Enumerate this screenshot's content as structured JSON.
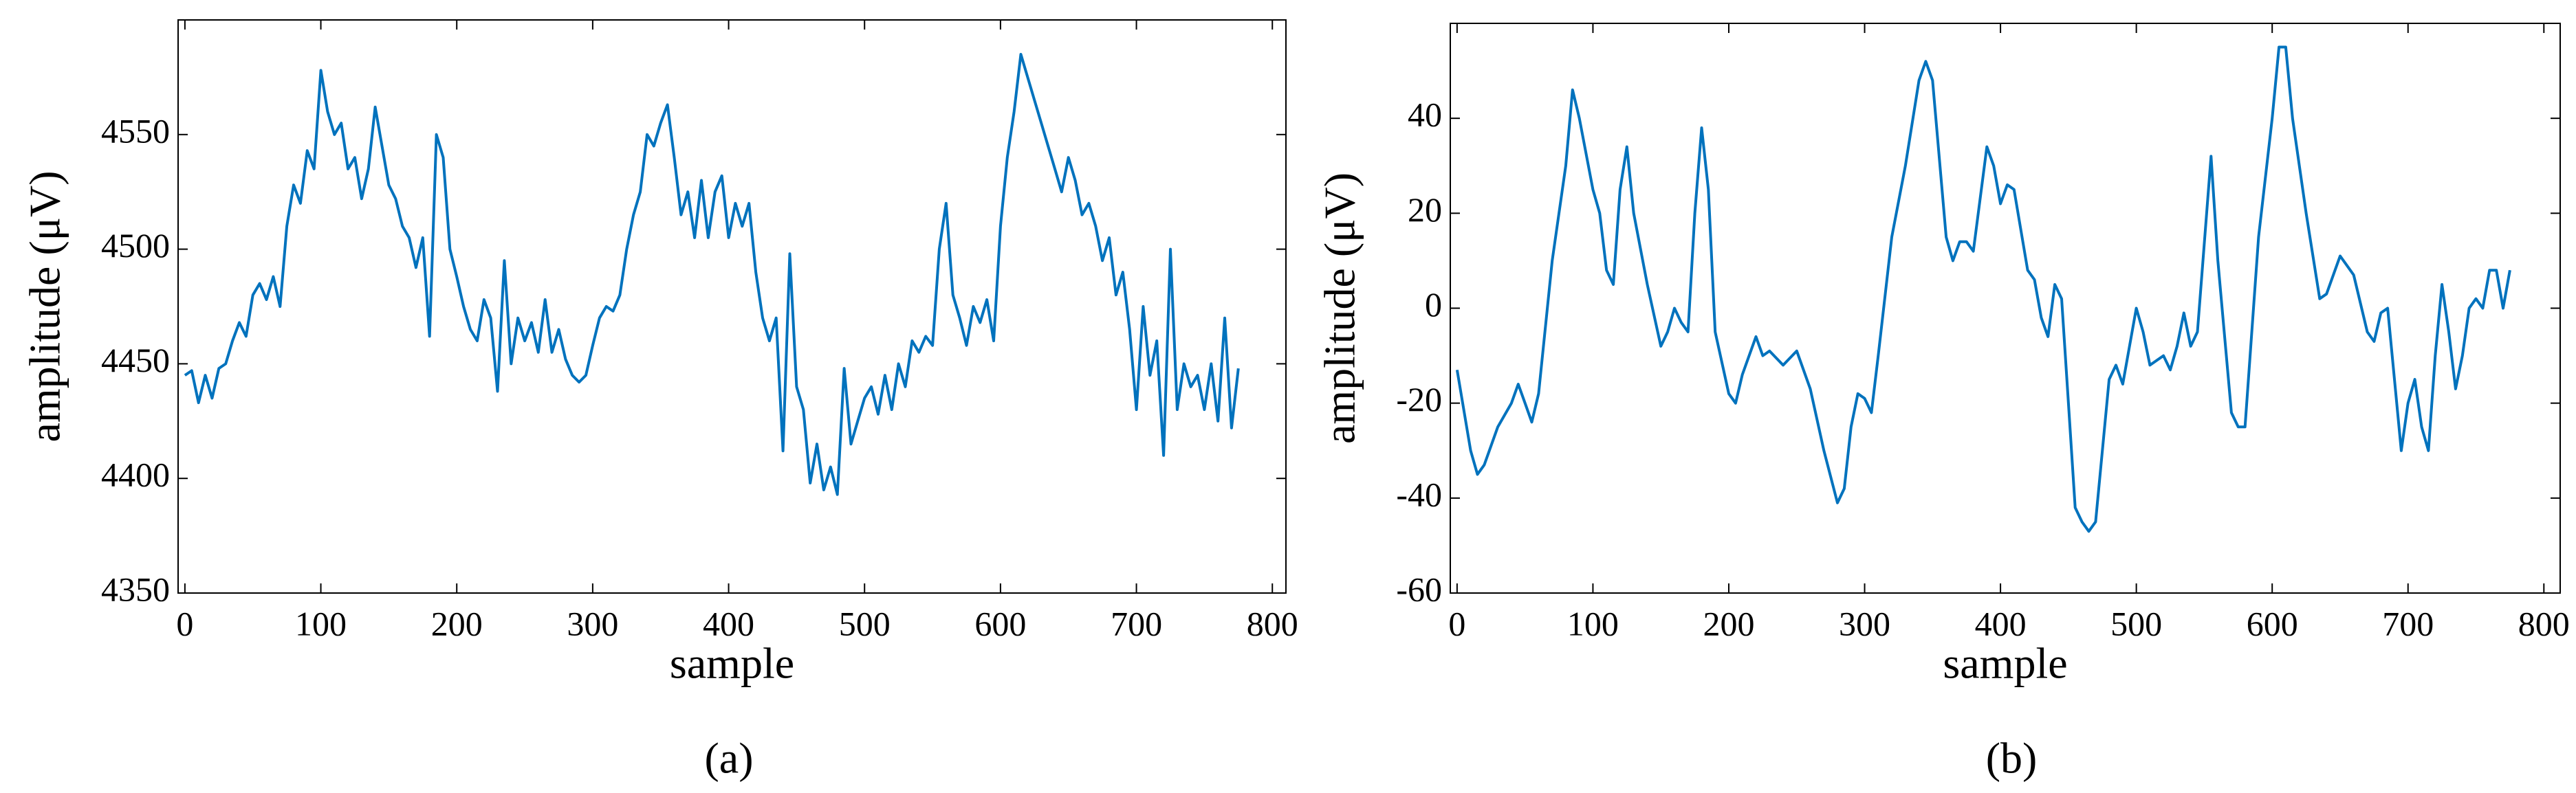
{
  "chart_data": [
    {
      "type": "line",
      "caption": "(a)",
      "xlabel": "sample",
      "ylabel": "amplitude (μV)",
      "xlim": [
        -5,
        810
      ],
      "ylim": [
        4350,
        4600
      ],
      "xticks": [
        0,
        100,
        200,
        300,
        400,
        500,
        600,
        700,
        800
      ],
      "yticks": [
        4350,
        4400,
        4450,
        4500,
        4550
      ],
      "x": [
        0,
        5,
        10,
        15,
        20,
        25,
        30,
        35,
        40,
        45,
        50,
        55,
        60,
        65,
        70,
        75,
        80,
        85,
        90,
        95,
        100,
        105,
        110,
        115,
        120,
        125,
        130,
        135,
        140,
        145,
        150,
        155,
        160,
        165,
        170,
        175,
        180,
        185,
        190,
        195,
        200,
        205,
        210,
        215,
        220,
        225,
        230,
        235,
        240,
        245,
        250,
        255,
        260,
        265,
        270,
        275,
        280,
        285,
        290,
        295,
        300,
        305,
        310,
        315,
        320,
        325,
        330,
        335,
        340,
        345,
        350,
        355,
        360,
        365,
        370,
        375,
        380,
        385,
        390,
        395,
        400,
        405,
        410,
        415,
        420,
        425,
        430,
        435,
        440,
        445,
        450,
        455,
        460,
        465,
        470,
        475,
        480,
        485,
        490,
        495,
        500,
        505,
        510,
        515,
        520,
        525,
        530,
        535,
        540,
        545,
        550,
        555,
        560,
        565,
        570,
        575,
        580,
        585,
        590,
        595,
        600,
        605,
        610,
        615,
        620,
        625,
        630,
        635,
        640,
        645,
        650,
        655,
        660,
        665,
        670,
        675,
        680,
        685,
        690,
        695,
        700,
        705,
        710,
        715,
        720,
        725,
        730,
        735,
        740,
        745,
        750,
        755,
        760,
        765,
        770,
        775
      ],
      "series": [
        {
          "color": "#0072bd",
          "values": [
            4445,
            4447,
            4433,
            4445,
            4435,
            4448,
            4450,
            4460,
            4468,
            4462,
            4480,
            4485,
            4478,
            4488,
            4475,
            4510,
            4528,
            4520,
            4543,
            4535,
            4578,
            4560,
            4550,
            4555,
            4535,
            4540,
            4522,
            4535,
            4562,
            4545,
            4528,
            4522,
            4510,
            4505,
            4492,
            4505,
            4462,
            4550,
            4540,
            4500,
            4488,
            4475,
            4465,
            4460,
            4478,
            4470,
            4438,
            4495,
            4450,
            4470,
            4460,
            4468,
            4455,
            4478,
            4455,
            4465,
            4452,
            4445,
            4442,
            4445,
            4458,
            4470,
            4475,
            4473,
            4480,
            4500,
            4515,
            4525,
            4550,
            4545,
            4555,
            4563,
            4540,
            4515,
            4525,
            4505,
            4530,
            4505,
            4525,
            4532,
            4505,
            4520,
            4510,
            4520,
            4490,
            4470,
            4460,
            4470,
            4412,
            4498,
            4440,
            4430,
            4398,
            4415,
            4395,
            4405,
            4393,
            4448,
            4415,
            4425,
            4435,
            4440,
            4428,
            4445,
            4430,
            4450,
            4440,
            4460,
            4455,
            4462,
            4458,
            4500,
            4520,
            4480,
            4470,
            4458,
            4475,
            4468,
            4478,
            4460,
            4510,
            4540,
            4560,
            4585,
            4575,
            4565,
            4555,
            4545,
            4535,
            4525,
            4540,
            4530,
            4515,
            4520,
            4510,
            4495,
            4505,
            4480,
            4490,
            4465,
            4430,
            4475,
            4445,
            4460,
            4410,
            4500,
            4430,
            4450,
            4440,
            4445,
            4430,
            4450,
            4425,
            4470,
            4422,
            4448
          ]
        }
      ]
    },
    {
      "type": "line",
      "caption": "(b)",
      "xlabel": "sample",
      "ylabel": "amplitude (μV)",
      "xlim": [
        -5,
        812
      ],
      "ylim": [
        -60,
        60
      ],
      "xticks": [
        0,
        100,
        200,
        300,
        400,
        500,
        600,
        700,
        800
      ],
      "yticks": [
        -60,
        -40,
        -20,
        0,
        20,
        40
      ],
      "x": [
        0,
        10,
        15,
        20,
        30,
        40,
        45,
        50,
        55,
        60,
        70,
        80,
        85,
        90,
        100,
        105,
        110,
        115,
        120,
        125,
        130,
        140,
        150,
        155,
        160,
        165,
        170,
        175,
        180,
        185,
        190,
        200,
        205,
        210,
        220,
        225,
        230,
        240,
        250,
        260,
        270,
        280,
        285,
        290,
        295,
        300,
        305,
        310,
        320,
        330,
        340,
        345,
        350,
        360,
        365,
        370,
        375,
        380,
        390,
        395,
        400,
        405,
        410,
        420,
        425,
        430,
        435,
        440,
        445,
        450,
        455,
        460,
        465,
        470,
        480,
        485,
        490,
        500,
        505,
        510,
        520,
        525,
        530,
        535,
        540,
        545,
        555,
        560,
        570,
        575,
        580,
        590,
        600,
        605,
        610,
        615,
        625,
        635,
        640,
        650,
        660,
        670,
        675,
        680,
        685,
        690,
        695,
        700,
        705,
        710,
        715,
        720,
        725,
        730,
        735,
        740,
        745,
        750,
        755,
        760,
        765,
        770,
        775
      ],
      "series": [
        {
          "color": "#0072bd",
          "values": [
            -13,
            -30,
            -35,
            -33,
            -25,
            -20,
            -16,
            -20,
            -24,
            -18,
            10,
            30,
            46,
            40,
            25,
            20,
            8,
            5,
            25,
            34,
            20,
            5,
            -8,
            -5,
            0,
            -3,
            -5,
            20,
            38,
            25,
            -5,
            -18,
            -20,
            -14,
            -6,
            -10,
            -9,
            -12,
            -9,
            -17,
            -30,
            -41,
            -38,
            -25,
            -18,
            -19,
            -22,
            -10,
            15,
            30,
            48,
            52,
            48,
            15,
            10,
            14,
            14,
            12,
            34,
            30,
            22,
            26,
            25,
            8,
            6,
            -2,
            -6,
            5,
            2,
            -20,
            -42,
            -45,
            -47,
            -45,
            -15,
            -12,
            -16,
            0,
            -5,
            -12,
            -10,
            -13,
            -8,
            -1,
            -8,
            -5,
            32,
            10,
            -22,
            -25,
            -25,
            15,
            40,
            55,
            55,
            40,
            20,
            2,
            3,
            11,
            7,
            -5,
            -7,
            -1,
            0,
            -15,
            -30,
            -20,
            -15,
            -25,
            -30,
            -10,
            5,
            -5,
            -17,
            -10,
            0,
            2,
            0,
            8,
            8,
            0,
            8
          ]
        }
      ]
    }
  ]
}
